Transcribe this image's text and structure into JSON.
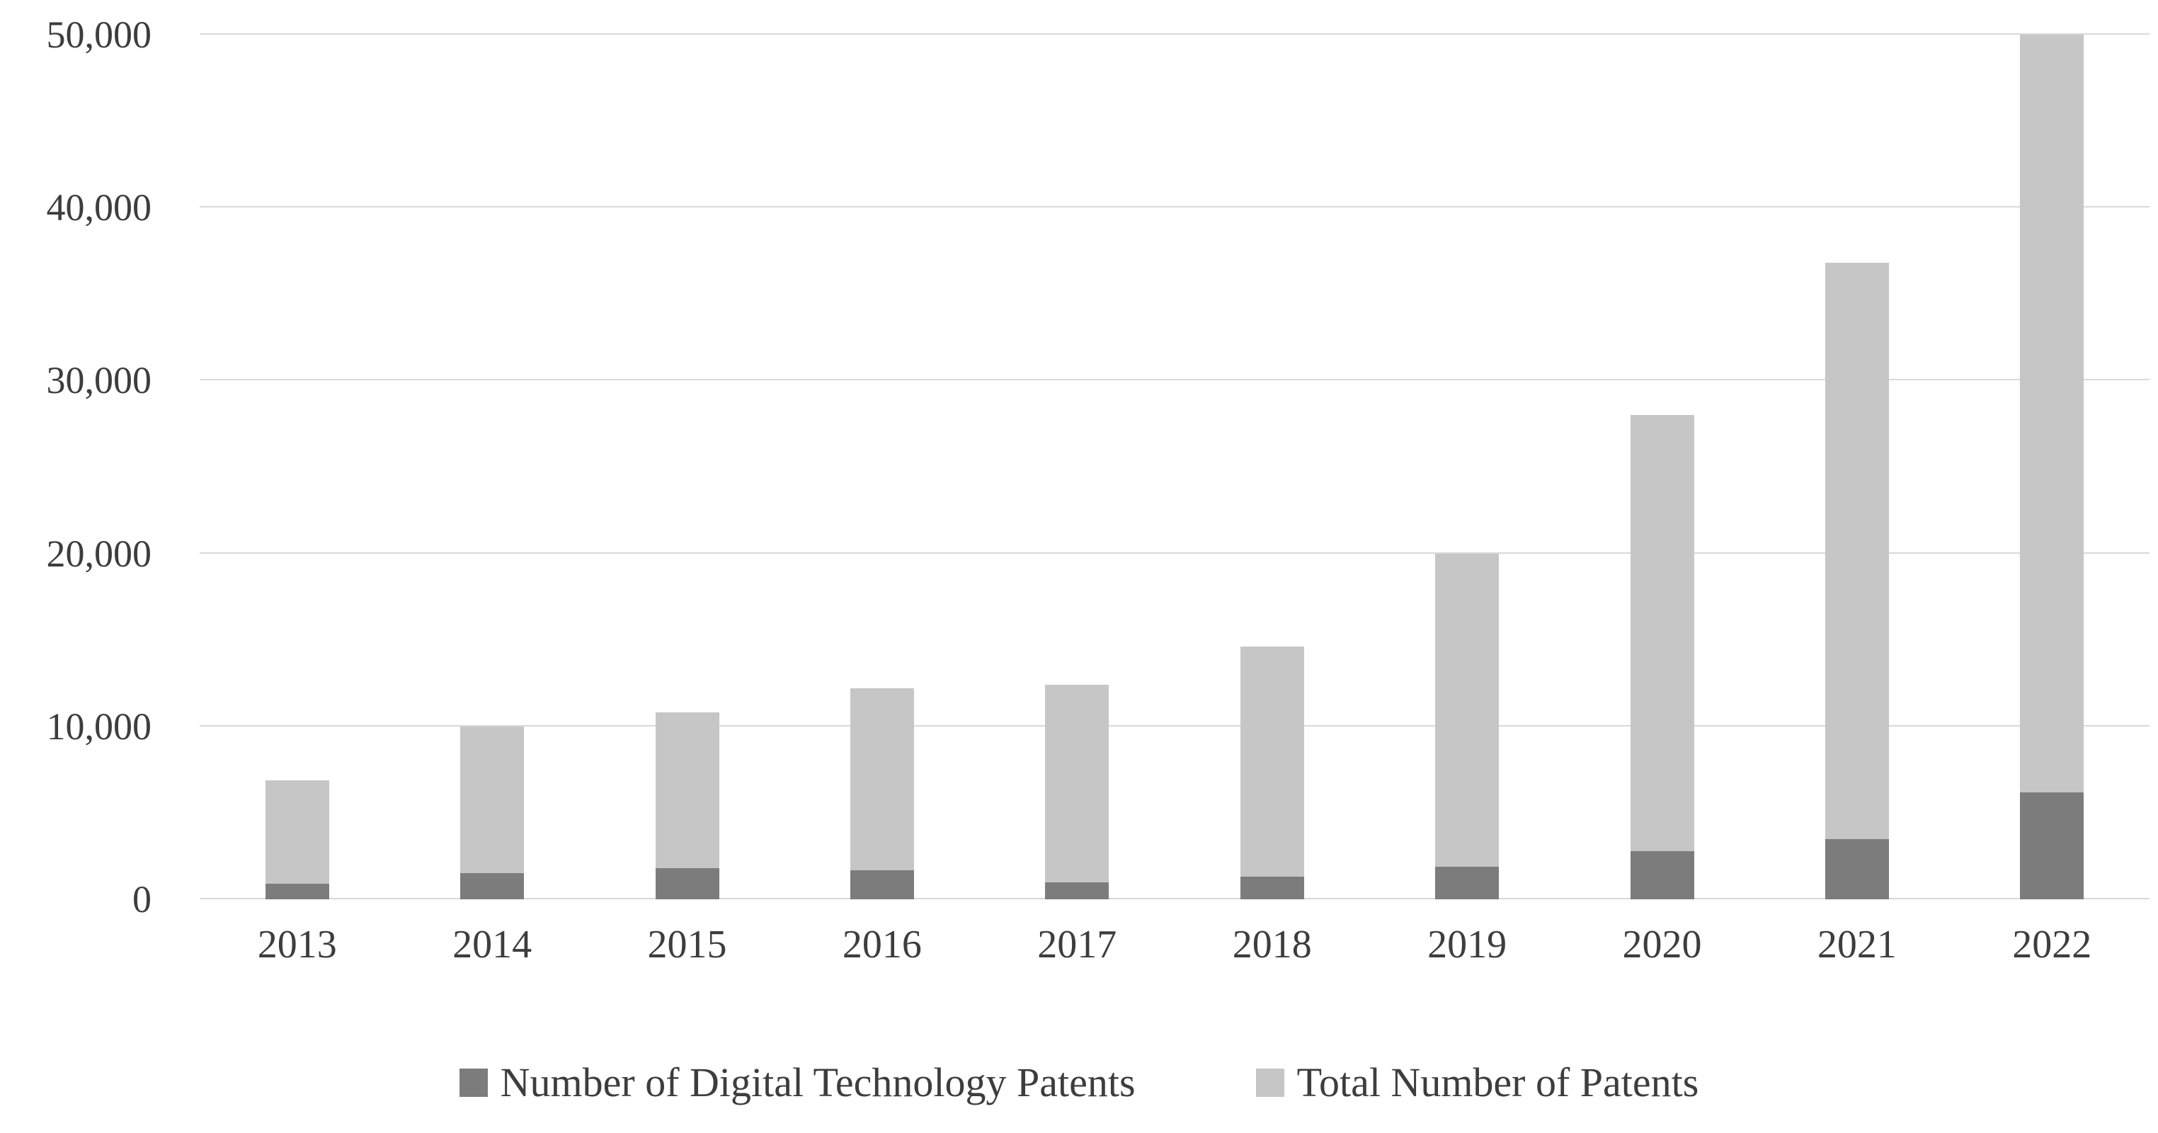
{
  "chart_data": {
    "type": "bar",
    "subtype": "overlay",
    "title": "",
    "xlabel": "",
    "ylabel": "",
    "categories": [
      "2013",
      "2014",
      "2015",
      "2016",
      "2017",
      "2018",
      "2019",
      "2020",
      "2021",
      "2022"
    ],
    "series": [
      {
        "name": "Number of Digital Technology Patents",
        "color": "#7c7c7c",
        "values": [
          900,
          1500,
          1800,
          1700,
          1000,
          1300,
          1900,
          2800,
          3500,
          6200
        ]
      },
      {
        "name": "Total Number of Patents",
        "color": "#c6c6c6",
        "values": [
          6900,
          10000,
          10800,
          12200,
          12400,
          14600,
          20000,
          28000,
          36800,
          50000
        ]
      }
    ],
    "ylim": [
      0,
      50000
    ],
    "ytick_step": 10000,
    "ytick_labels": [
      "0",
      "10,000",
      "20,000",
      "30,000",
      "40,000",
      "50,000"
    ],
    "grid": true,
    "gridline_color": "#d9d9d9",
    "text_color": "#3d3d3d",
    "legend_position": "bottom"
  }
}
